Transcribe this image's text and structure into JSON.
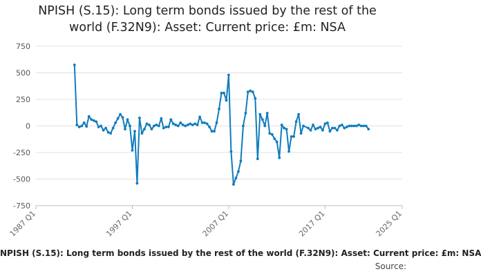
{
  "chart_data": {
    "type": "line",
    "title": "NPISH (S.15): Long term bonds issued by the rest of the world (F.32N9): Asset: Current price: £m: NSA",
    "title_lines": [
      "NPISH (S.15): Long term bonds issued by the rest of the",
      "world (F.32N9): Asset: Current price: £m: NSA"
    ],
    "legend_text": "NPISH (S.15): Long term bonds issued by the rest of the world (F.32N9): Asset: Current price: £m: NSA",
    "source_label": "Source:",
    "ylim": [
      -750,
      750
    ],
    "y_ticks": [
      -750,
      -500,
      -250,
      0,
      250,
      500,
      750
    ],
    "x_ticks": [
      "1987 Q1",
      "1997 Q1",
      "2007 Q1",
      "2017 Q1",
      "2025 Q1"
    ],
    "x_tick_years": [
      1987,
      1997,
      2007,
      2017,
      2025
    ],
    "xlim": [
      1987,
      2025
    ],
    "grid": true,
    "series_color": "#0f7bbd",
    "series": [
      {
        "points": [
          [
            1991.0,
            575
          ],
          [
            1991.25,
            10
          ],
          [
            1991.5,
            -10
          ],
          [
            1991.75,
            0
          ],
          [
            1992.0,
            30
          ],
          [
            1992.25,
            -5
          ],
          [
            1992.5,
            90
          ],
          [
            1992.75,
            60
          ],
          [
            1993.0,
            50
          ],
          [
            1993.25,
            40
          ],
          [
            1993.5,
            -10
          ],
          [
            1993.75,
            0
          ],
          [
            1994.0,
            -40
          ],
          [
            1994.25,
            -20
          ],
          [
            1994.5,
            -60
          ],
          [
            1994.75,
            -70
          ],
          [
            1995.0,
            -20
          ],
          [
            1995.25,
            30
          ],
          [
            1995.5,
            70
          ],
          [
            1995.75,
            110
          ],
          [
            1996.0,
            80
          ],
          [
            1996.25,
            -30
          ],
          [
            1996.5,
            60
          ],
          [
            1996.75,
            0
          ],
          [
            1997.0,
            -230
          ],
          [
            1997.25,
            -50
          ],
          [
            1997.5,
            -540
          ],
          [
            1997.75,
            75
          ],
          [
            1998.0,
            -70
          ],
          [
            1998.25,
            -30
          ],
          [
            1998.5,
            20
          ],
          [
            1998.75,
            10
          ],
          [
            1999.0,
            -30
          ],
          [
            1999.25,
            0
          ],
          [
            1999.5,
            10
          ],
          [
            1999.75,
            0
          ],
          [
            2000.0,
            70
          ],
          [
            2000.25,
            -20
          ],
          [
            2000.5,
            -10
          ],
          [
            2000.75,
            -10
          ],
          [
            2001.0,
            60
          ],
          [
            2001.25,
            20
          ],
          [
            2001.5,
            10
          ],
          [
            2001.75,
            0
          ],
          [
            2002.0,
            30
          ],
          [
            2002.25,
            10
          ],
          [
            2002.5,
            0
          ],
          [
            2002.75,
            10
          ],
          [
            2003.0,
            20
          ],
          [
            2003.25,
            10
          ],
          [
            2003.5,
            20
          ],
          [
            2003.75,
            10
          ],
          [
            2004.0,
            85
          ],
          [
            2004.25,
            30
          ],
          [
            2004.5,
            30
          ],
          [
            2004.75,
            20
          ],
          [
            2005.0,
            -10
          ],
          [
            2005.25,
            -50
          ],
          [
            2005.5,
            -50
          ],
          [
            2005.75,
            30
          ],
          [
            2006.0,
            160
          ],
          [
            2006.25,
            310
          ],
          [
            2006.5,
            310
          ],
          [
            2006.75,
            240
          ],
          [
            2007.0,
            480
          ],
          [
            2007.25,
            -240
          ],
          [
            2007.5,
            -550
          ],
          [
            2007.75,
            -490
          ],
          [
            2008.0,
            -430
          ],
          [
            2008.25,
            -330
          ],
          [
            2008.5,
            0
          ],
          [
            2008.75,
            120
          ],
          [
            2009.0,
            320
          ],
          [
            2009.25,
            330
          ],
          [
            2009.5,
            320
          ],
          [
            2009.75,
            260
          ],
          [
            2010.0,
            -310
          ],
          [
            2010.25,
            110
          ],
          [
            2010.5,
            60
          ],
          [
            2010.75,
            0
          ],
          [
            2011.0,
            120
          ],
          [
            2011.25,
            -70
          ],
          [
            2011.5,
            -80
          ],
          [
            2011.75,
            -120
          ],
          [
            2012.0,
            -150
          ],
          [
            2012.25,
            -300
          ],
          [
            2012.5,
            10
          ],
          [
            2012.75,
            -20
          ],
          [
            2013.0,
            -30
          ],
          [
            2013.25,
            -240
          ],
          [
            2013.5,
            -100
          ],
          [
            2013.75,
            -100
          ],
          [
            2014.0,
            40
          ],
          [
            2014.25,
            110
          ],
          [
            2014.5,
            -70
          ],
          [
            2014.75,
            0
          ],
          [
            2015.25,
            -20
          ],
          [
            2015.5,
            -40
          ],
          [
            2015.75,
            10
          ],
          [
            2016.0,
            -30
          ],
          [
            2016.25,
            -20
          ],
          [
            2016.5,
            -10
          ],
          [
            2016.75,
            -40
          ],
          [
            2017.0,
            20
          ],
          [
            2017.25,
            30
          ],
          [
            2017.5,
            -50
          ],
          [
            2017.75,
            -20
          ],
          [
            2018.0,
            -20
          ],
          [
            2018.25,
            -40
          ],
          [
            2018.5,
            0
          ],
          [
            2018.75,
            10
          ],
          [
            2019.0,
            -20
          ],
          [
            2019.25,
            -10
          ],
          [
            2019.5,
            0
          ],
          [
            2019.75,
            0
          ],
          [
            2020.0,
            0
          ],
          [
            2020.25,
            0
          ],
          [
            2020.5,
            10
          ],
          [
            2020.75,
            0
          ],
          [
            2021.0,
            0
          ],
          [
            2021.25,
            0
          ],
          [
            2021.5,
            -30
          ]
        ]
      }
    ]
  }
}
